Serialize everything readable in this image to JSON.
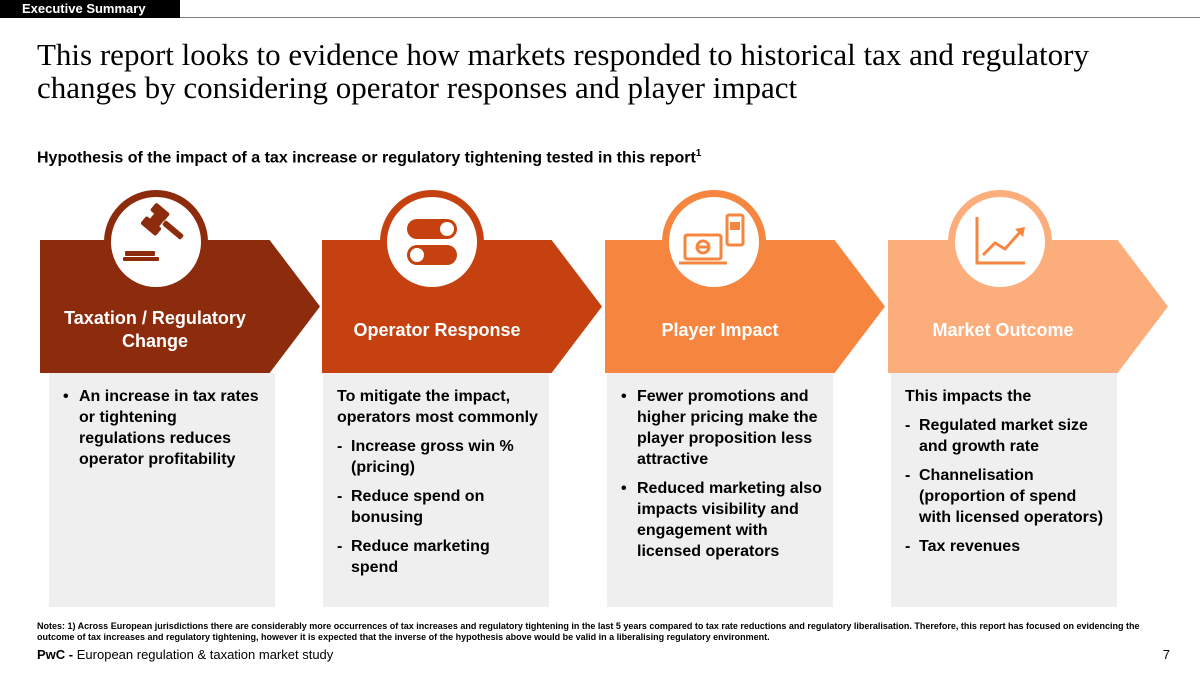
{
  "header": {
    "tag": "Executive Summary"
  },
  "title": "This report looks to evidence how markets responded to historical tax and regulatory changes by considering operator responses and player impact",
  "subtitle": {
    "text": "Hypothesis of the impact of a tax increase or regulatory tightening tested in this report",
    "sup": "1"
  },
  "steps": [
    {
      "label": "Taxation / Regulatory Change",
      "color": "#8c2c0c",
      "icon": "gavel-icon",
      "items": [
        {
          "style": "bullet",
          "text": "An increase in tax rates or tightening regulations reduces operator profitability"
        }
      ]
    },
    {
      "label": "Operator Response",
      "color": "#c54110",
      "icon": "toggle-switch-icon",
      "intro": "To mitigate the impact, operators most commonly",
      "items": [
        {
          "style": "dash",
          "text": "Increase gross win % (pricing)"
        },
        {
          "style": "dash",
          "text": "Reduce spend on bonusing"
        },
        {
          "style": "dash",
          "text": "Reduce marketing spend"
        }
      ]
    },
    {
      "label": "Player Impact",
      "color": "#f6863f",
      "icon": "laptop-phone-icon",
      "items": [
        {
          "style": "bullet",
          "text": "Fewer promotions and higher pricing make the player proposition less attractive"
        },
        {
          "style": "bullet",
          "text": "Reduced marketing also impacts visibility and engagement with licensed operators"
        }
      ]
    },
    {
      "label": "Market Outcome",
      "color": "#fbae7c",
      "icon": "growth-chart-icon",
      "intro": "This impacts the",
      "items": [
        {
          "style": "dash",
          "text": "Regulated market size and growth rate"
        },
        {
          "style": "dash",
          "text": "Channelisation (proportion of spend with licensed operators)"
        },
        {
          "style": "dash",
          "text": "Tax revenues"
        }
      ]
    }
  ],
  "notes": "Notes: 1) Across European jurisdictions there are considerably more occurrences of tax increases and regulatory tightening in the last 5 years compared to tax rate reductions and regulatory liberalisation. Therefore, this report has focused on evidencing the outcome of tax increases and regulatory tightening, however it is expected that the inverse of the hypothesis above would be valid in a liberalising regulatory environment.",
  "footer": {
    "brand": "PwC -",
    "text": "European regulation & taxation market study",
    "page": "7"
  }
}
